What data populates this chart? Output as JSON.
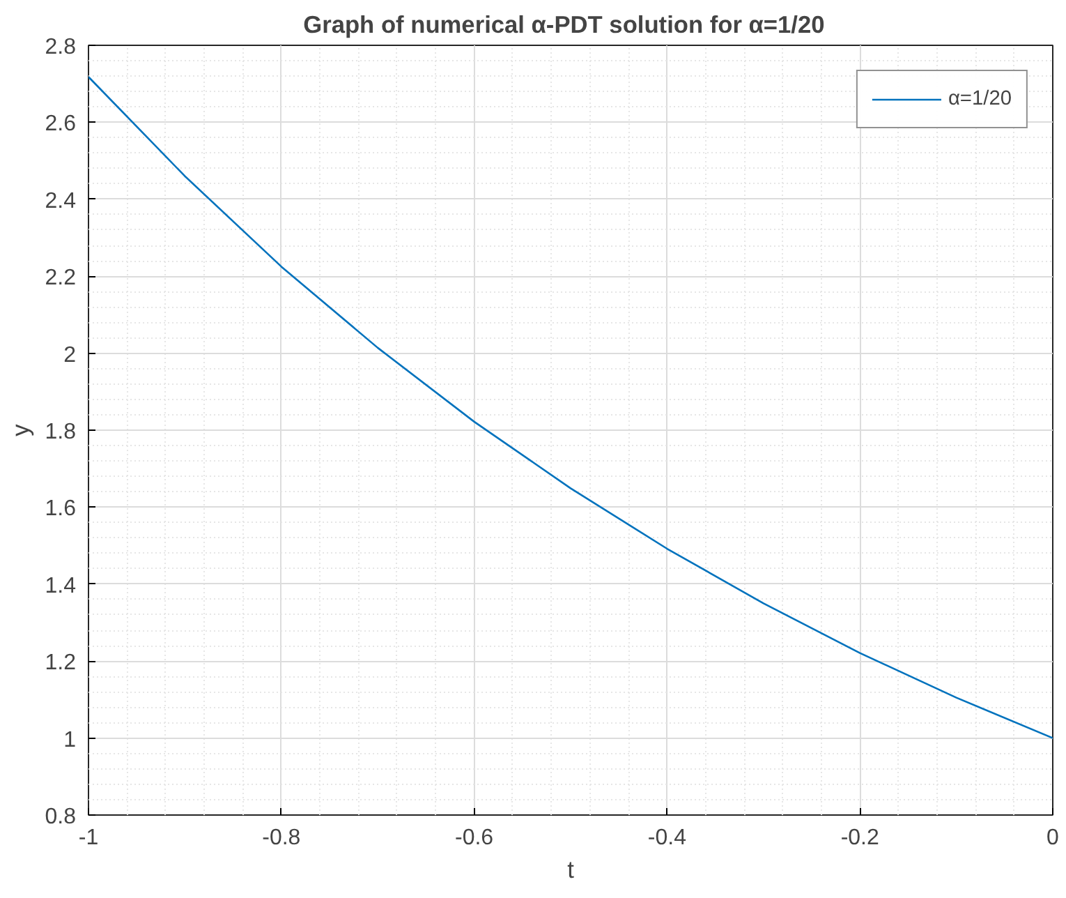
{
  "chart_data": {
    "type": "line",
    "title": "Graph of  numerical α-PDT  solution for α=1/20",
    "xlabel": "t",
    "ylabel": "y",
    "x": [
      -1,
      -0.9,
      -0.8,
      -0.7,
      -0.6,
      -0.5,
      -0.4,
      -0.3,
      -0.2,
      -0.1,
      0
    ],
    "series": [
      {
        "name": "α=1/20",
        "color": "#0072bd",
        "values": [
          2.718,
          2.46,
          2.225,
          2.014,
          1.822,
          1.649,
          1.492,
          1.35,
          1.221,
          1.105,
          1.0
        ]
      }
    ],
    "xlim": [
      -1,
      0
    ],
    "ylim": [
      0.8,
      2.8
    ],
    "xticks": [
      -1,
      -0.8,
      -0.6,
      -0.4,
      -0.2,
      0
    ],
    "yticks": [
      0.8,
      1,
      1.2,
      1.4,
      1.6,
      1.8,
      2,
      2.2,
      2.4,
      2.6,
      2.8
    ],
    "grid": true,
    "legend": "top right",
    "marker": "none",
    "line_style": "solid"
  }
}
